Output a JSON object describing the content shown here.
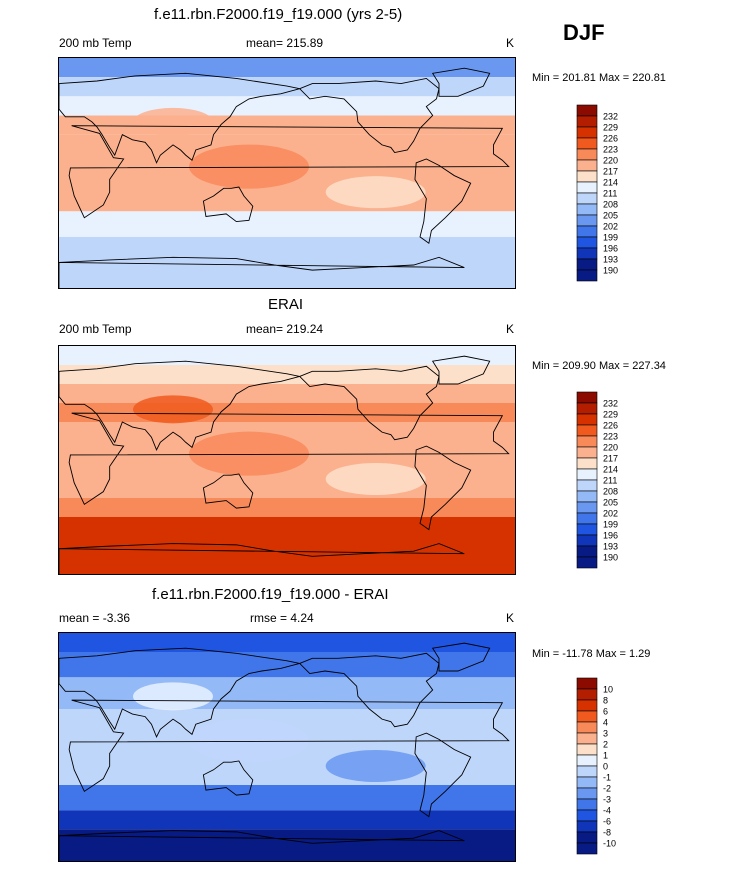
{
  "season": "DJF",
  "panels": [
    {
      "title": "f.e11.rbn.F2000.f19_f19.000 (yrs 2-5)",
      "left_label": "200 mb Temp",
      "center_label": "mean= 215.89",
      "units": "K",
      "minmax": "Min = 201.81 Max = 220.81"
    },
    {
      "title": "ERAI",
      "left_label": "200 mb Temp",
      "center_label": "mean= 219.24",
      "units": "K",
      "minmax": "Min = 209.90 Max = 227.34"
    },
    {
      "title": "f.e11.rbn.F2000.f19_f19.000 - ERAI",
      "left_label": "mean =  -3.36",
      "center_label": "rmse =   4.24",
      "units": "K",
      "minmax": "Min = -11.78 Max =   1.29"
    }
  ],
  "chart_data": [
    {
      "type": "heatmap",
      "title": "f.e11.rbn.F2000.f19_f19.000 (yrs 2-5)",
      "variable": "200 mb Temp",
      "units": "K",
      "mean": 215.89,
      "min": 201.81,
      "max": 220.81,
      "colorbar_levels": [
        "232",
        "229",
        "226",
        "223",
        "220",
        "217",
        "214",
        "211",
        "208",
        "205",
        "202",
        "199",
        "196",
        "193",
        "190"
      ],
      "bands": [
        {
          "lat_from": 90,
          "lat_to": 75,
          "value": 203
        },
        {
          "lat_from": 75,
          "lat_to": 60,
          "value": 208
        },
        {
          "lat_from": 60,
          "lat_to": 45,
          "value": 213
        },
        {
          "lat_from": 45,
          "lat_to": 30,
          "value": 217
        },
        {
          "lat_from": 30,
          "lat_to": 0,
          "value": 219
        },
        {
          "lat_from": 0,
          "lat_to": -30,
          "value": 217
        },
        {
          "lat_from": -30,
          "lat_to": -50,
          "value": 213
        },
        {
          "lat_from": -50,
          "lat_to": -90,
          "value": 210
        }
      ]
    },
    {
      "type": "heatmap",
      "title": "ERAI",
      "variable": "200 mb Temp",
      "units": "K",
      "mean": 219.24,
      "min": 209.9,
      "max": 227.34,
      "colorbar_levels": [
        "232",
        "229",
        "226",
        "223",
        "220",
        "217",
        "214",
        "211",
        "208",
        "205",
        "202",
        "199",
        "196",
        "193",
        "190"
      ],
      "bands": [
        {
          "lat_from": 90,
          "lat_to": 75,
          "value": 212
        },
        {
          "lat_from": 75,
          "lat_to": 60,
          "value": 215
        },
        {
          "lat_from": 60,
          "lat_to": 45,
          "value": 218
        },
        {
          "lat_from": 45,
          "lat_to": 30,
          "value": 221
        },
        {
          "lat_from": 30,
          "lat_to": 0,
          "value": 219
        },
        {
          "lat_from": 0,
          "lat_to": -30,
          "value": 218
        },
        {
          "lat_from": -30,
          "lat_to": -45,
          "value": 220
        },
        {
          "lat_from": -45,
          "lat_to": -90,
          "value": 226
        }
      ]
    },
    {
      "type": "heatmap",
      "title": "f.e11.rbn.F2000.f19_f19.000 - ERAI",
      "variable": "difference",
      "units": "K",
      "mean": -3.36,
      "rmse": 4.24,
      "min": -11.78,
      "max": 1.29,
      "colorbar_levels": [
        "10",
        "8",
        "6",
        "4",
        "3",
        "2",
        "1",
        "0",
        "-1",
        "-2",
        "-3",
        "-4",
        "-6",
        "-8",
        "-10"
      ],
      "bands": [
        {
          "lat_from": 90,
          "lat_to": 75,
          "value": -6
        },
        {
          "lat_from": 75,
          "lat_to": 55,
          "value": -4
        },
        {
          "lat_from": 55,
          "lat_to": 30,
          "value": -2
        },
        {
          "lat_from": 30,
          "lat_to": -30,
          "value": -1
        },
        {
          "lat_from": -30,
          "lat_to": -50,
          "value": -4
        },
        {
          "lat_from": -50,
          "lat_to": -65,
          "value": -8
        },
        {
          "lat_from": -65,
          "lat_to": -90,
          "value": -11
        }
      ]
    }
  ],
  "colors": {
    "palette": [
      "#8b0b00",
      "#b31e00",
      "#d63200",
      "#f05a1e",
      "#f88a5a",
      "#fbb08e",
      "#fde0ca",
      "#e8f2ff",
      "#bfd6fb",
      "#94b9f7",
      "#6a98f0",
      "#4076ea",
      "#1f55e0",
      "#1035b8",
      "#081a84"
    ]
  }
}
